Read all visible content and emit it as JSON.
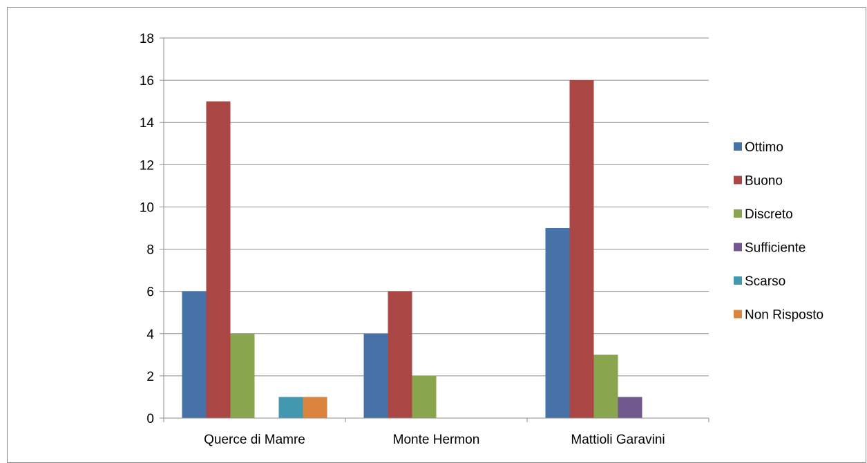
{
  "chart_data": {
    "type": "bar",
    "title": "",
    "xlabel": "",
    "ylabel": "",
    "categories": [
      "Querce di Mamre",
      "Monte Hermon",
      "Mattioli Garavini"
    ],
    "ylim": [
      0,
      18
    ],
    "yticks": [
      0,
      2,
      4,
      6,
      8,
      10,
      12,
      14,
      16,
      18
    ],
    "grid": true,
    "legend_position": "right",
    "series": [
      {
        "name": "Ottimo",
        "color": "#4672a8",
        "values": [
          6,
          4,
          9
        ]
      },
      {
        "name": "Buono",
        "color": "#aa4643",
        "values": [
          15,
          6,
          16
        ]
      },
      {
        "name": "Discreto",
        "color": "#89a54e",
        "values": [
          4,
          2,
          3
        ]
      },
      {
        "name": "Sufficiente",
        "color": "#71588f",
        "values": [
          0,
          0,
          1
        ]
      },
      {
        "name": "Scarso",
        "color": "#4198af",
        "values": [
          1,
          0,
          0
        ]
      },
      {
        "name": "Non Risposto",
        "color": "#db843d",
        "values": [
          1,
          0,
          0
        ]
      }
    ]
  }
}
